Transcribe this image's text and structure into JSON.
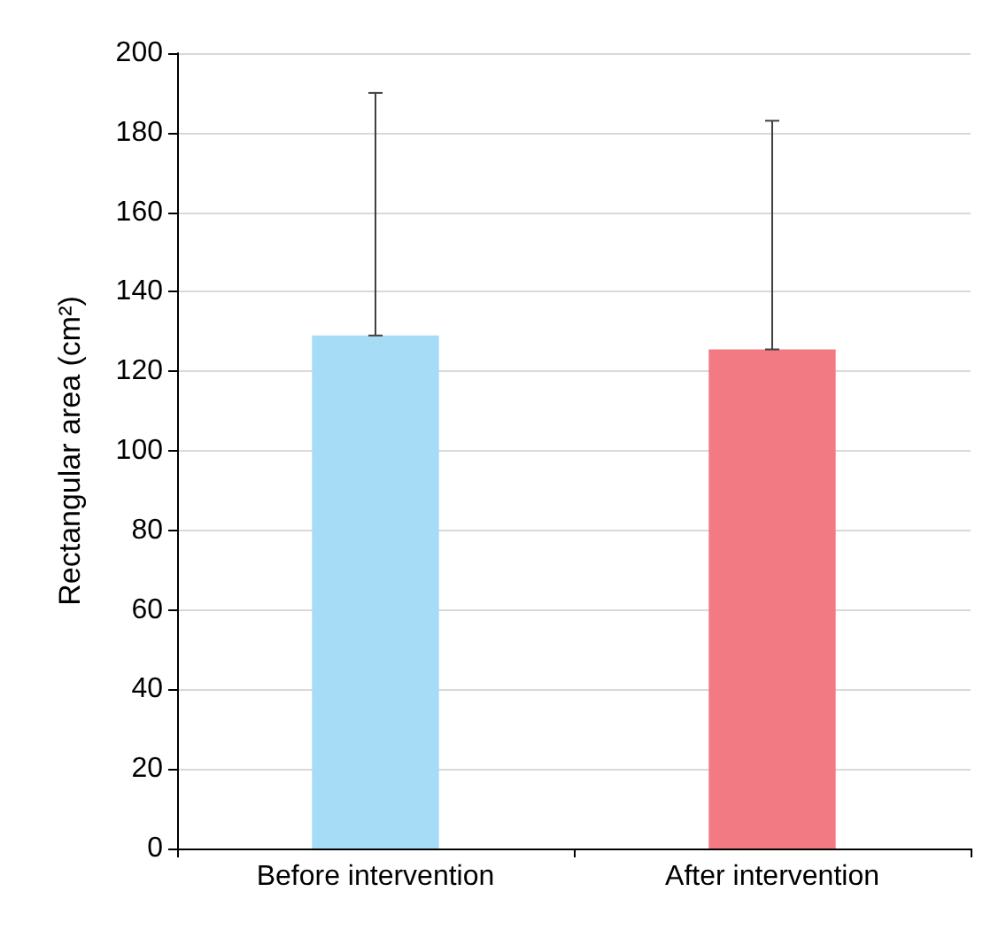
{
  "chart_data": {
    "type": "bar",
    "ylabel": "Rectangular area (cm²)",
    "categories": [
      "Before intervention",
      "After intervention"
    ],
    "values": [
      129,
      125.5
    ],
    "colors": [
      "#a6dcf5",
      "#f27a82"
    ],
    "errors": [
      [
        129,
        190
      ],
      [
        125.5,
        183
      ]
    ],
    "ylim": [
      0,
      200
    ],
    "yticks": [
      0,
      20,
      40,
      60,
      80,
      100,
      120,
      140,
      160,
      180,
      200
    ],
    "grid": "y"
  }
}
